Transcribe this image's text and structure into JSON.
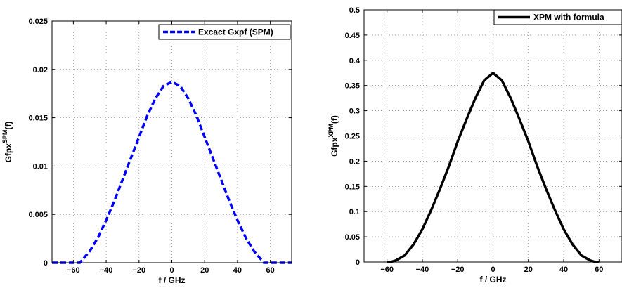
{
  "chart_data": [
    {
      "type": "line",
      "legend": [
        "Excact Gxpf (SPM)"
      ],
      "legend_placement": "top-right",
      "xlabel": "f / GHz",
      "ylabel_base": "Gfpx",
      "ylabel_sup": "SPM",
      "ylabel_tail": "(f)",
      "xlim": [
        -73,
        73
      ],
      "ylim": [
        0,
        0.025
      ],
      "xticks": [
        -60,
        -40,
        -20,
        0,
        20,
        40,
        60
      ],
      "yticks": [
        0,
        0.005,
        0.01,
        0.015,
        0.02,
        0.025
      ],
      "grid": true,
      "series": [
        {
          "name": "Excact Gxpf (SPM)",
          "color": "#0000ff",
          "style": "dashed",
          "x": [
            -73,
            -60,
            -56,
            -50,
            -45,
            -40,
            -35,
            -30,
            -25,
            -20,
            -15,
            -10,
            -5,
            0,
            5,
            10,
            15,
            20,
            25,
            30,
            35,
            40,
            45,
            50,
            56,
            60,
            73
          ],
          "y": [
            0,
            0,
            0,
            0.0012,
            0.0026,
            0.0044,
            0.0064,
            0.0086,
            0.0108,
            0.013,
            0.0152,
            0.017,
            0.0183,
            0.0187,
            0.0183,
            0.017,
            0.0152,
            0.013,
            0.0108,
            0.0086,
            0.0064,
            0.0044,
            0.0026,
            0.0012,
            0,
            0,
            0
          ]
        }
      ]
    },
    {
      "type": "line",
      "legend": [
        "XPM with formula"
      ],
      "legend_placement": "top-right",
      "xlabel": "f / GHz",
      "ylabel_base": "Gfpx",
      "ylabel_sup": "XPM",
      "ylabel_tail": "(f)",
      "xlim": [
        -73,
        73
      ],
      "ylim": [
        0,
        0.5
      ],
      "xticks": [
        -60,
        -40,
        -20,
        0,
        20,
        40,
        60
      ],
      "yticks": [
        0,
        0.05,
        0.1,
        0.15,
        0.2,
        0.25,
        0.3,
        0.35,
        0.4,
        0.45,
        0.5
      ],
      "grid": true,
      "series": [
        {
          "name": "XPM with formula",
          "color": "#000000",
          "style": "solid",
          "x": [
            -60,
            -58,
            -55,
            -50,
            -45,
            -40,
            -35,
            -30,
            -25,
            -20,
            -15,
            -10,
            -5,
            0,
            5,
            10,
            15,
            20,
            25,
            30,
            35,
            40,
            45,
            50,
            55,
            58,
            60
          ],
          "y": [
            0,
            0,
            0.003,
            0.013,
            0.035,
            0.065,
            0.103,
            0.145,
            0.19,
            0.239,
            0.283,
            0.325,
            0.36,
            0.375,
            0.36,
            0.325,
            0.283,
            0.239,
            0.19,
            0.145,
            0.103,
            0.065,
            0.035,
            0.013,
            0.003,
            0,
            0
          ]
        }
      ]
    }
  ]
}
